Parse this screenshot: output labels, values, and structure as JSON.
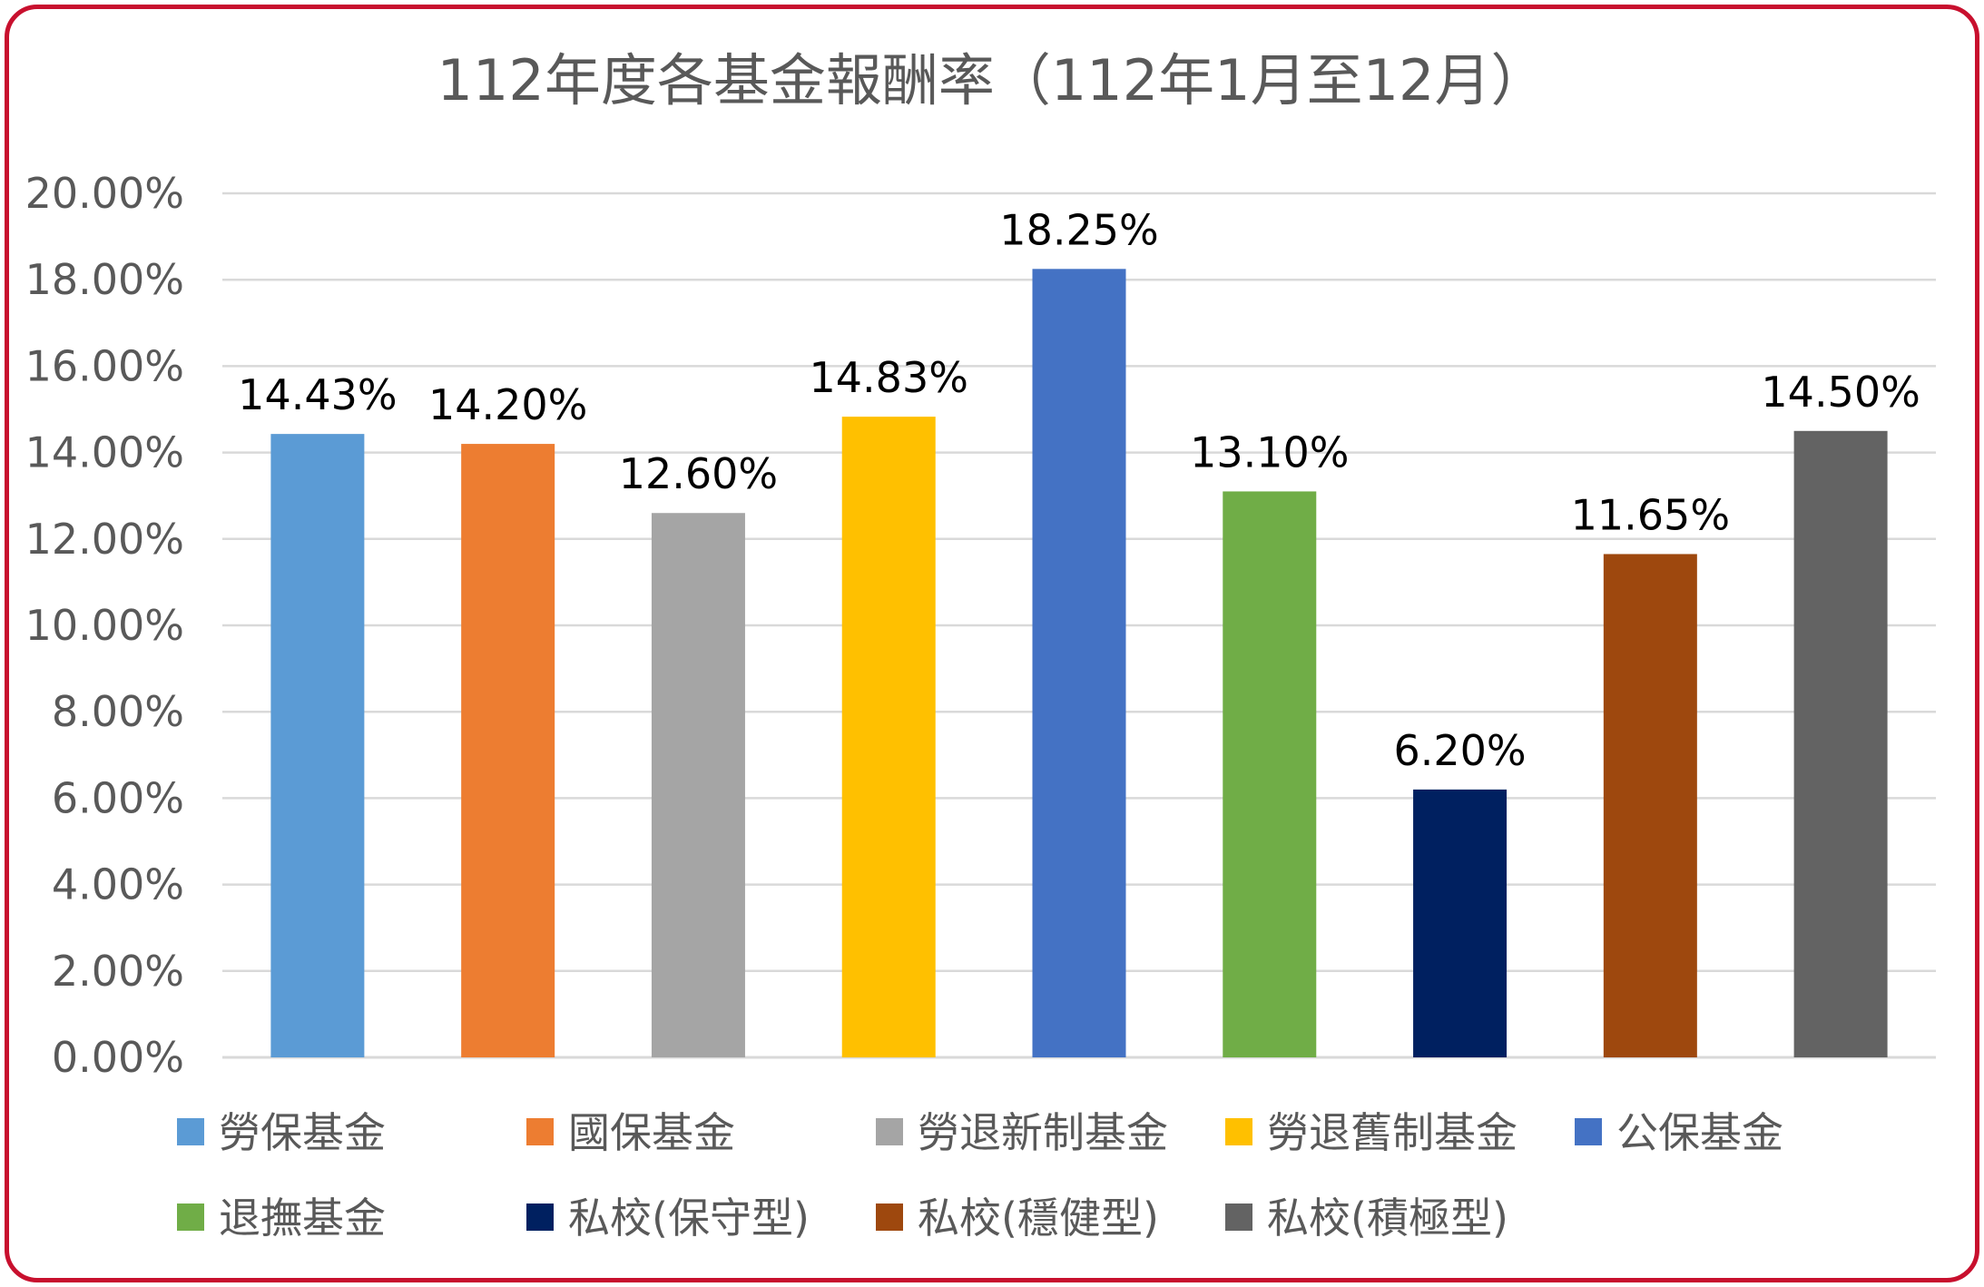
{
  "chart_data": {
    "type": "bar",
    "title": "112年度各基金報酬率（112年1月至12月）",
    "xlabel": "",
    "ylabel": "",
    "ylim": [
      0,
      20
    ],
    "yticks": [
      "0.00%",
      "2.00%",
      "4.00%",
      "6.00%",
      "8.00%",
      "10.00%",
      "12.00%",
      "14.00%",
      "16.00%",
      "18.00%",
      "20.00%"
    ],
    "grid": true,
    "legend_position": "bottom",
    "categories": [
      "勞保基金",
      "國保基金",
      "勞退新制基金",
      "勞退舊制基金",
      "公保基金",
      "退撫基金",
      "私校(保守型)",
      "私校(穩健型)",
      "私校(積極型)"
    ],
    "values": [
      14.43,
      14.2,
      12.6,
      14.83,
      18.25,
      13.1,
      6.2,
      11.65,
      14.5
    ],
    "data_labels": [
      "14.43%",
      "14.20%",
      "12.60%",
      "14.83%",
      "18.25%",
      "13.10%",
      "6.20%",
      "11.65%",
      "14.50%"
    ],
    "colors": [
      "#5B9BD5",
      "#ED7D31",
      "#A5A5A5",
      "#FFC000",
      "#4472C4",
      "#70AD47",
      "#002060",
      "#9E480E",
      "#636363"
    ]
  },
  "frame_color": "#C8102E"
}
